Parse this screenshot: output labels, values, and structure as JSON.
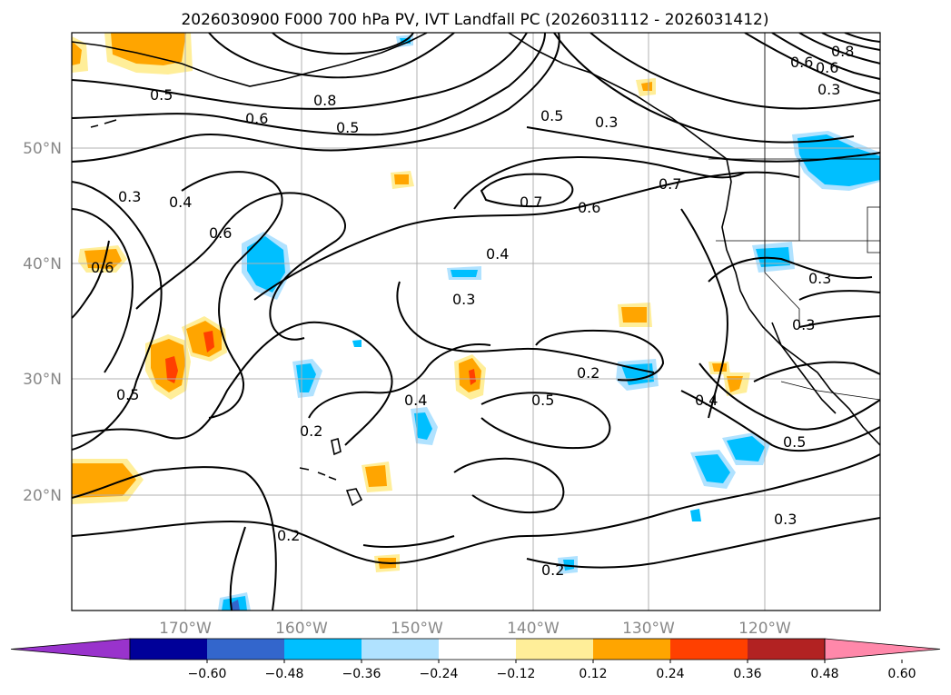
{
  "title": "2026030900 F000 700 hPa PV, IVT Landfall PC (2026031112 - 2026031412)",
  "axes": {
    "lat_labels": [
      "50°N",
      "40°N",
      "30°N",
      "20°N"
    ],
    "lon_labels": [
      "170°W",
      "160°W",
      "150°W",
      "140°W",
      "130°W",
      "120°W"
    ]
  },
  "contour_labels": [
    "0.5",
    "0.6",
    "0.8",
    "0.5",
    "0.5",
    "0.3",
    "0.8",
    "0.6",
    "0.6",
    "0.3",
    "0.3",
    "0.4",
    "0.6",
    "0.6",
    "0.7",
    "0.6",
    "0.7",
    "0.4",
    "0.3",
    "0.3",
    "0.3",
    "0.2",
    "0.5",
    "0.4",
    "0.4",
    "0.5",
    "0.2",
    "0.5",
    "0.3",
    "0.2",
    "0.2"
  ],
  "colorbar": {
    "colors": [
      "#9933cc",
      "#000099",
      "#3366cc",
      "#00bfff",
      "#b0e2ff",
      "#ffffff",
      "#ffee99",
      "#ffa500",
      "#ff4000",
      "#b22222",
      "#ff88aa"
    ],
    "ticks": [
      "−0.60",
      "−0.48",
      "−0.36",
      "−0.24",
      "−0.12",
      "0.12",
      "0.24",
      "0.36",
      "0.48",
      "0.60"
    ]
  }
}
